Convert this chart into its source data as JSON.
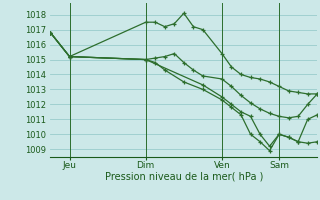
{
  "background_color": "#cce8e8",
  "grid_color": "#99cccc",
  "line_color": "#2d6e2d",
  "title": "Pression niveau de la mer( hPa )",
  "ylabel_ticks": [
    1009,
    1010,
    1011,
    1012,
    1013,
    1014,
    1015,
    1016,
    1017,
    1018
  ],
  "ylim": [
    1008.5,
    1018.8
  ],
  "xlim": [
    0,
    84
  ],
  "xtick_positions": [
    6,
    30,
    54,
    72
  ],
  "xtick_labels": [
    "Jeu",
    "Dim",
    "Ven",
    "Sam"
  ],
  "vline_positions": [
    6,
    30,
    54,
    72
  ],
  "series1": {
    "x": [
      0,
      6,
      30,
      33,
      36,
      39,
      42,
      45,
      48,
      54,
      57,
      60,
      63,
      66,
      69,
      72,
      75,
      78,
      81,
      84
    ],
    "y": [
      1016.8,
      1015.2,
      1017.5,
      1017.5,
      1017.2,
      1017.4,
      1018.1,
      1017.2,
      1017.0,
      1015.4,
      1014.5,
      1014.0,
      1013.8,
      1013.7,
      1013.5,
      1013.2,
      1012.9,
      1012.8,
      1012.7,
      1012.7
    ]
  },
  "series2": {
    "x": [
      0,
      6,
      30,
      33,
      36,
      39,
      42,
      45,
      48,
      54,
      57,
      60,
      63,
      66,
      69,
      72,
      75,
      78,
      81,
      84
    ],
    "y": [
      1016.8,
      1015.2,
      1015.0,
      1015.1,
      1015.2,
      1015.4,
      1014.8,
      1014.3,
      1013.9,
      1013.7,
      1013.2,
      1012.6,
      1012.1,
      1011.7,
      1011.4,
      1011.2,
      1011.1,
      1011.2,
      1012.0,
      1012.7
    ]
  },
  "series3": {
    "x": [
      0,
      6,
      30,
      33,
      36,
      42,
      48,
      54,
      57,
      60,
      63,
      66,
      69,
      72,
      75,
      78,
      81,
      84
    ],
    "y": [
      1016.8,
      1015.2,
      1015.0,
      1014.8,
      1014.3,
      1013.5,
      1013.0,
      1012.3,
      1011.8,
      1011.3,
      1010.0,
      1009.5,
      1008.9,
      1010.0,
      1009.8,
      1009.5,
      1009.4,
      1009.5
    ]
  },
  "series4": {
    "x": [
      0,
      6,
      30,
      48,
      54,
      57,
      60,
      63,
      66,
      69,
      72,
      75,
      78,
      81,
      84
    ],
    "y": [
      1016.8,
      1015.2,
      1015.0,
      1013.3,
      1012.5,
      1012.0,
      1011.5,
      1011.2,
      1010.0,
      1009.2,
      1010.0,
      1009.8,
      1009.5,
      1011.0,
      1011.3
    ]
  }
}
